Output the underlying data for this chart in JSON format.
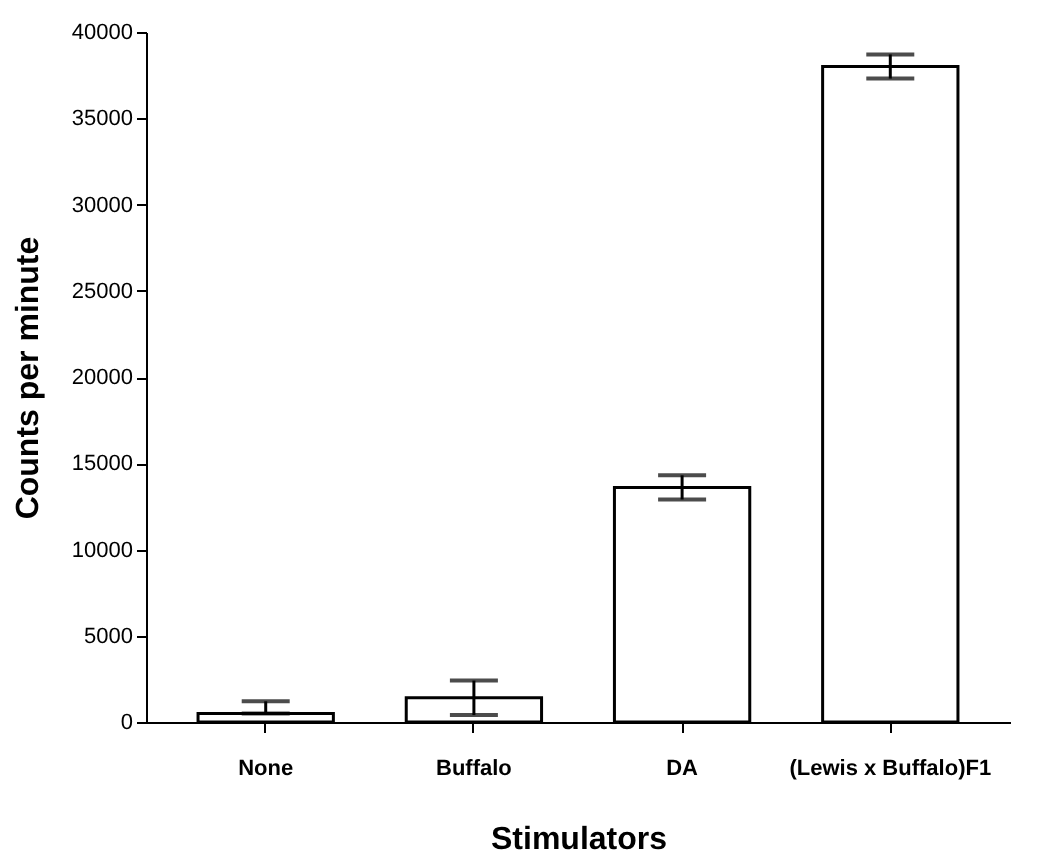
{
  "chart_data": {
    "type": "bar",
    "xlabel": "Stimulators",
    "ylabel": "Counts per minute",
    "categories": [
      "None",
      "Buffalo",
      "DA",
      "(Lewis x Buffalo)F1"
    ],
    "values": [
      500,
      1400,
      13600,
      38000
    ],
    "errors": [
      [
        500,
        1200
      ],
      1000,
      700,
      700
    ],
    "color": "#ffffff",
    "ylim": [
      0,
      40000
    ],
    "yticks": [
      0,
      5000,
      10000,
      15000,
      20000,
      25000,
      30000,
      35000,
      40000
    ],
    "grid": false
  }
}
